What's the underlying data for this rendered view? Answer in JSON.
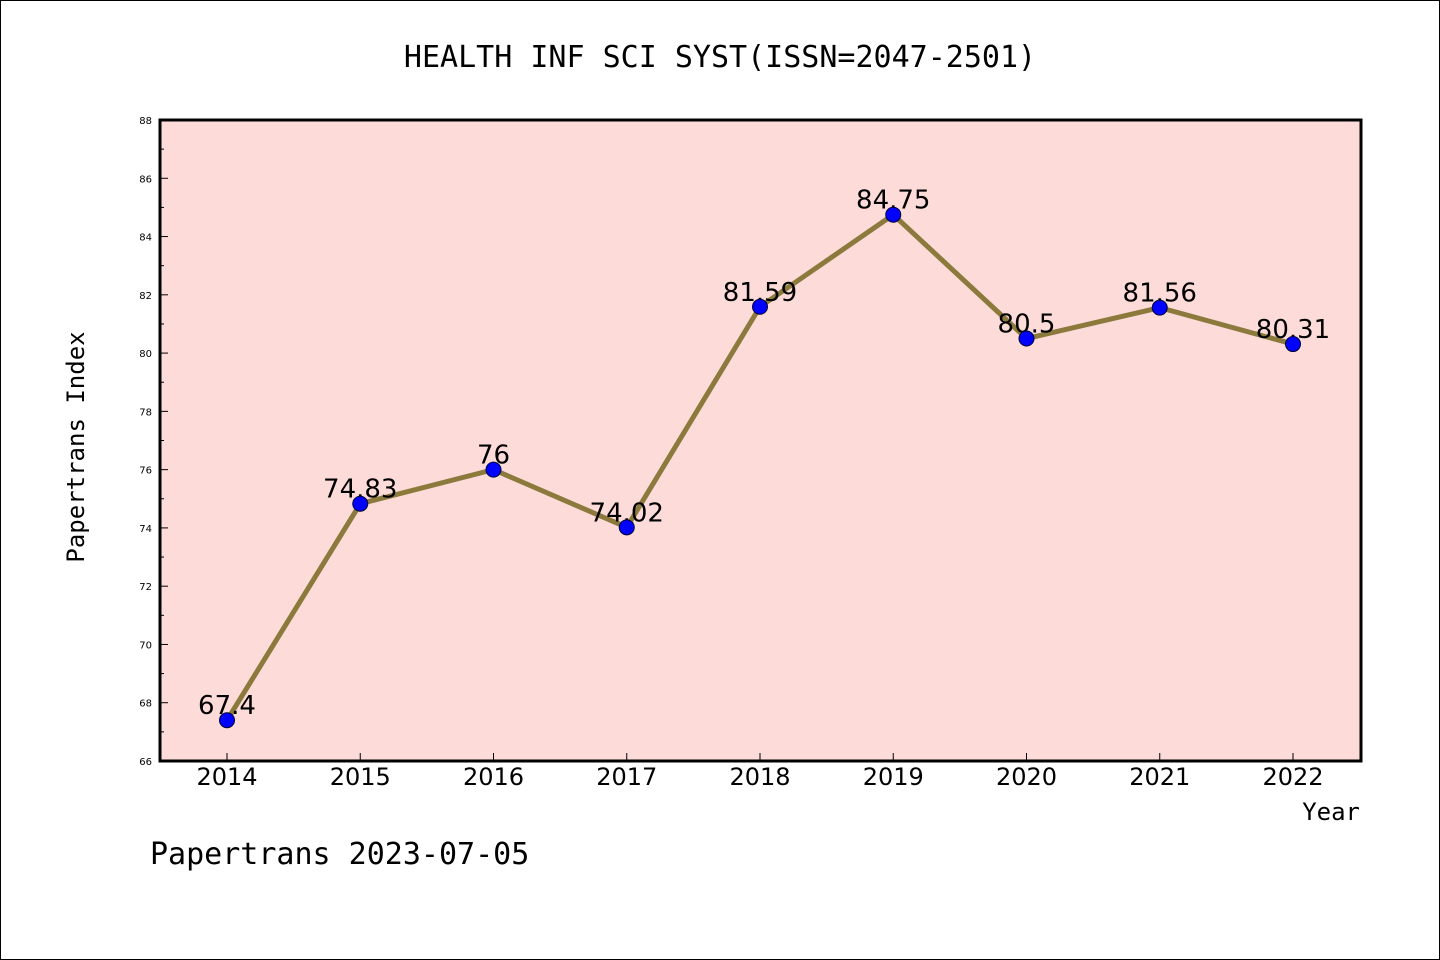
{
  "chart_data": {
    "type": "line",
    "title": "HEALTH INF SCI SYST(ISSN=2047-2501)",
    "xlabel": "Year",
    "ylabel": "Papertrans Index",
    "categories": [
      "2014",
      "2015",
      "2016",
      "2017",
      "2018",
      "2019",
      "2020",
      "2021",
      "2022"
    ],
    "series": [
      {
        "values": [
          67.4,
          74.83,
          76,
          74.02,
          81.59,
          84.75,
          80.5,
          81.56,
          80.31
        ],
        "labels": [
          "67.4",
          "74.83",
          "76",
          "74.02",
          "81.59",
          "84.75",
          "80.5",
          "81.56",
          "80.31"
        ]
      }
    ],
    "ylim": [
      66,
      88
    ],
    "yticks": [
      "66",
      "68",
      "70",
      "72",
      "74",
      "76",
      "78",
      "80",
      "82",
      "84",
      "86",
      "88"
    ],
    "grid": false,
    "legend": "none",
    "colors": {
      "plot_background": "#fddbd9",
      "line": "#8b7a3c",
      "marker": "#0000ff"
    }
  },
  "footer": {
    "text": "Papertrans 2023-07-05"
  }
}
